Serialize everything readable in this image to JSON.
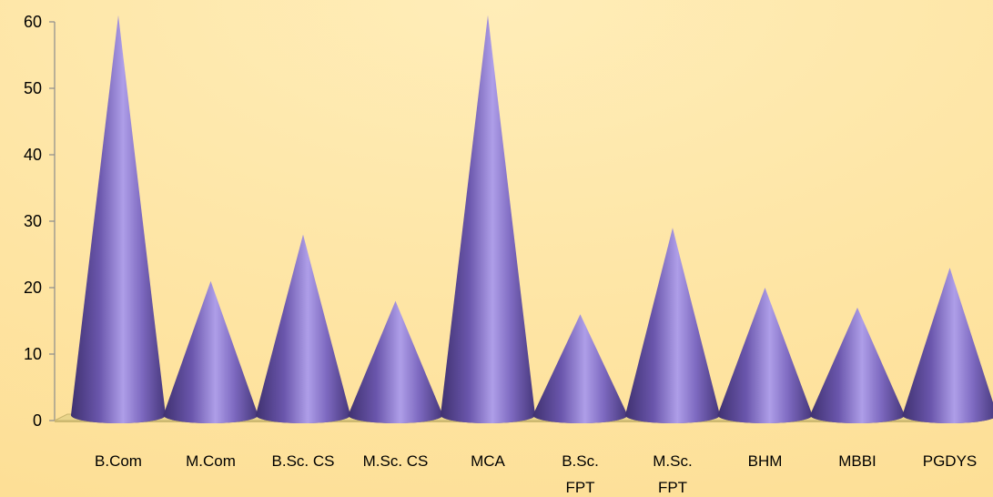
{
  "chart_data": {
    "type": "bar",
    "style": "3d-cone",
    "categories": [
      "B.Com",
      "M.Com",
      "B.Sc. CS",
      "M.Sc. CS",
      "MCA",
      "B.Sc. FPT",
      "M.Sc. FPT",
      "BHM",
      "MBBI",
      "PGDYS"
    ],
    "category_lines": [
      [
        "B.Com"
      ],
      [
        "M.Com"
      ],
      [
        "B.Sc. CS"
      ],
      [
        "M.Sc. CS"
      ],
      [
        "MCA"
      ],
      [
        "B.Sc.",
        "FPT"
      ],
      [
        "M.Sc.",
        "FPT"
      ],
      [
        "BHM"
      ],
      [
        "MBBI"
      ],
      [
        "PGDYS"
      ]
    ],
    "values": [
      61,
      21,
      28,
      18,
      61,
      16,
      29,
      20,
      17,
      23
    ],
    "yticks": [
      0,
      10,
      20,
      30,
      40,
      50,
      60
    ],
    "ylim": [
      0,
      60
    ],
    "title": "",
    "xlabel": "",
    "ylabel": "",
    "grid": false,
    "legend": "none"
  },
  "colors": {
    "background": "#FFE8A6",
    "cone_dark": "#4B3A80",
    "cone_mid": "#7A66BE",
    "cone_light": "#B5A6EC",
    "floor": "#E9D58C"
  }
}
